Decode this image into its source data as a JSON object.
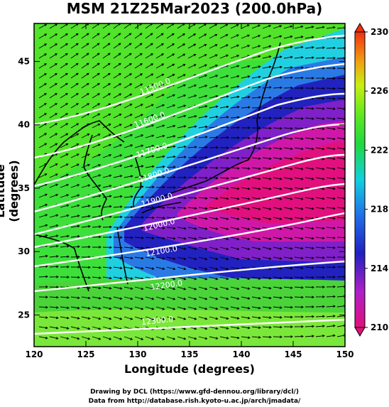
{
  "title": "MSM 21Z25Mar2023 (200.0hPa)",
  "xlabel": "Longitude (degrees)",
  "ylabel": "Latitude  (degrees)",
  "credit_line1": "Drawing by DCL (https://www.gfd-dennou.org/library/dcl/)",
  "credit_line2": "Data from http://database.rish.kyoto-u.ac.jp/arch/jmadata/",
  "x_ticks": [
    "120",
    "125",
    "130",
    "135",
    "140",
    "145",
    "150"
  ],
  "y_ticks": [
    "25",
    "30",
    "35",
    "40",
    "45"
  ],
  "colorbar_ticks": [
    "230",
    "226",
    "222",
    "218",
    "214",
    "210"
  ],
  "contour_labels": [
    "11500.0",
    "11600.0",
    "11700.0",
    "11800.0",
    "11900.0",
    "12000.0",
    "12100.0",
    "12200.0",
    "12300.0"
  ],
  "colors": {
    "background": "#ffffff",
    "contour": "#ffffff",
    "vector": "#000000"
  }
}
